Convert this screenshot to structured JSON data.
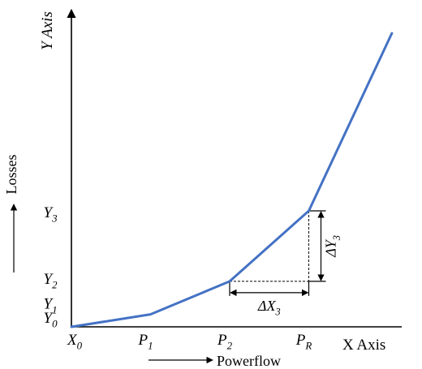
{
  "chart_data": {
    "type": "line",
    "ylabel": "Y Axis",
    "xlabel": "X Axis",
    "side_label": "Losses",
    "bottom_label": "Powerflow",
    "x_ticks": [
      {
        "base": "X",
        "sub": "0",
        "italic": true
      },
      {
        "base": "P",
        "sub": "1",
        "italic": true
      },
      {
        "base": "P",
        "sub": "2",
        "italic": true
      },
      {
        "base": "P",
        "sub": "R",
        "italic": true
      }
    ],
    "y_ticks": [
      {
        "base": "Y",
        "sub": "0",
        "italic": true
      },
      {
        "base": "Y",
        "sub": "1",
        "italic": true
      },
      {
        "base": "Y",
        "sub": "2",
        "italic": true
      },
      {
        "base": "Y",
        "sub": "3",
        "italic": true
      }
    ],
    "series": [
      {
        "color": "#4472C4",
        "x": [
          0,
          1,
          2,
          3,
          4.05
        ],
        "y": [
          0,
          0.17,
          0.62,
          1.58,
          4.0
        ]
      }
    ],
    "annotations": {
      "dx": {
        "base": "ΔX",
        "sub": "3"
      },
      "dy": {
        "base": "ΔY",
        "sub": "3"
      }
    },
    "xlim": [
      0,
      4.1
    ],
    "ylim": [
      0,
      4.3
    ],
    "grid": false
  }
}
